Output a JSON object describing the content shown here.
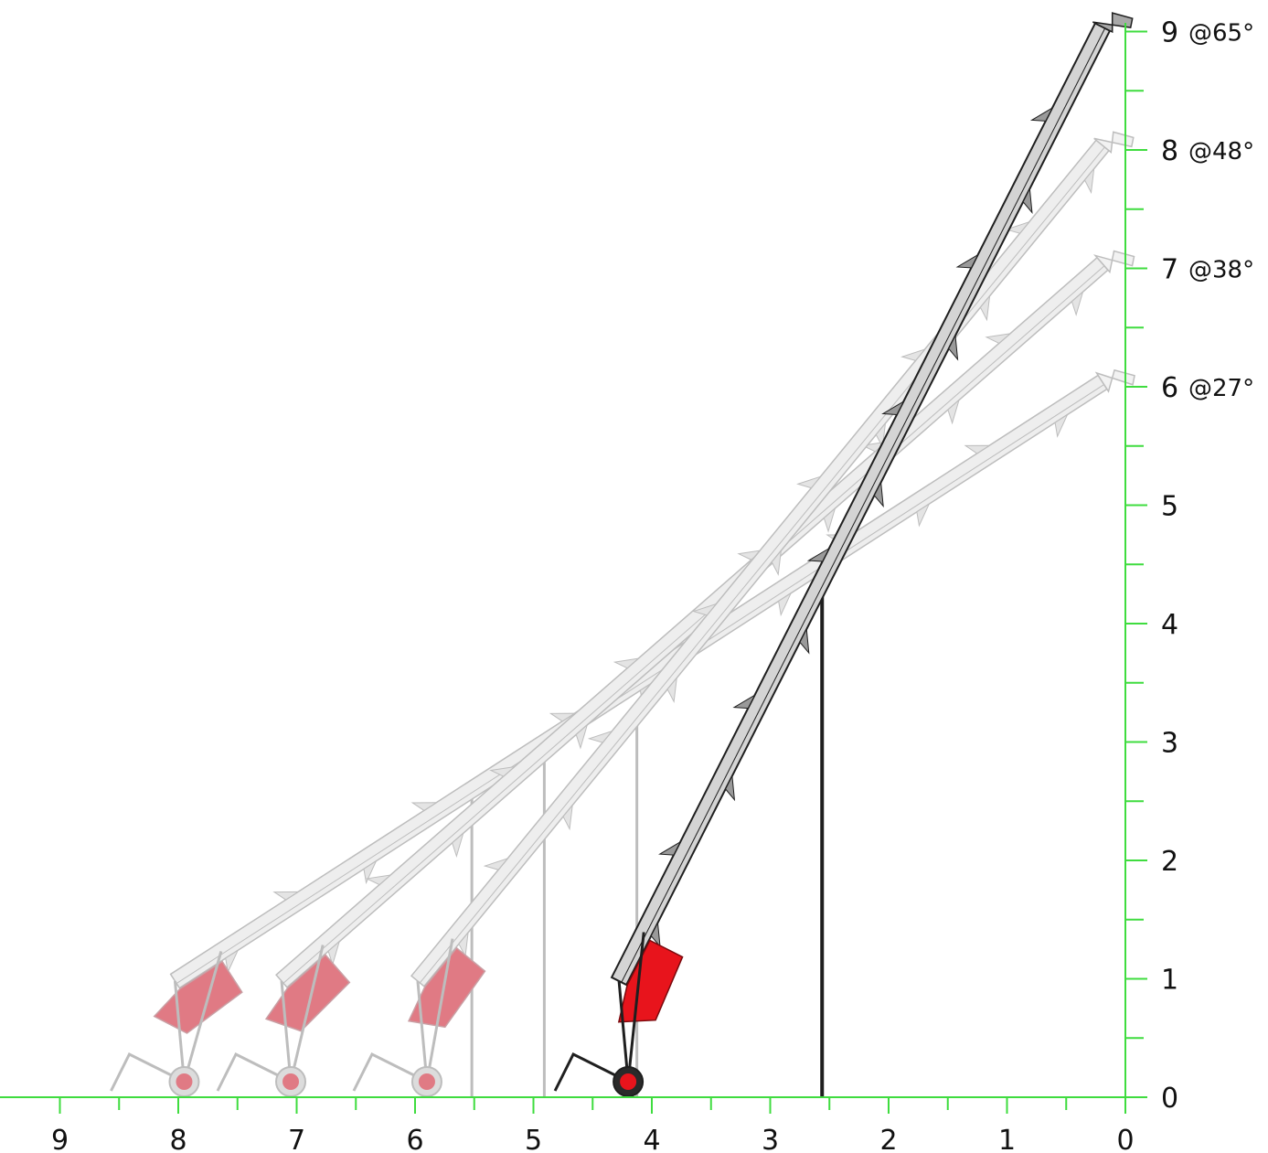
{
  "colors": {
    "axis": "#3fdc3f",
    "body_fill": "#d4d4d4",
    "body_stroke": "#1f1f1f",
    "hopper": "#e8141c",
    "faded_stroke": "#bdbdbd",
    "faded_fill": "#eeeeee",
    "faded_hopper": "#e07a84"
  },
  "x_axis": {
    "ticks": [
      "9",
      "8",
      "7",
      "6",
      "5",
      "4",
      "3",
      "2",
      "1",
      "0"
    ]
  },
  "y_axis": {
    "ticks": [
      "0",
      "1",
      "2",
      "3",
      "4",
      "5",
      "6",
      "7",
      "8",
      "9"
    ],
    "angle_labels": [
      {
        "height": 6,
        "label": "@27°"
      },
      {
        "height": 7,
        "label": "@38°"
      },
      {
        "height": 8,
        "label": "@48°"
      },
      {
        "height": 9,
        "label": "@65°"
      }
    ]
  },
  "conveyors": [
    {
      "angle": "27°",
      "top_height": 6,
      "wheel_distance": 7.95,
      "state": "faded"
    },
    {
      "angle": "38°",
      "top_height": 7,
      "wheel_distance": 7.05,
      "state": "faded"
    },
    {
      "angle": "48°",
      "top_height": 8,
      "wheel_distance": 5.9,
      "state": "faded"
    },
    {
      "angle": "65°",
      "top_height": 9,
      "wheel_distance": 4.2,
      "state": "active"
    }
  ]
}
